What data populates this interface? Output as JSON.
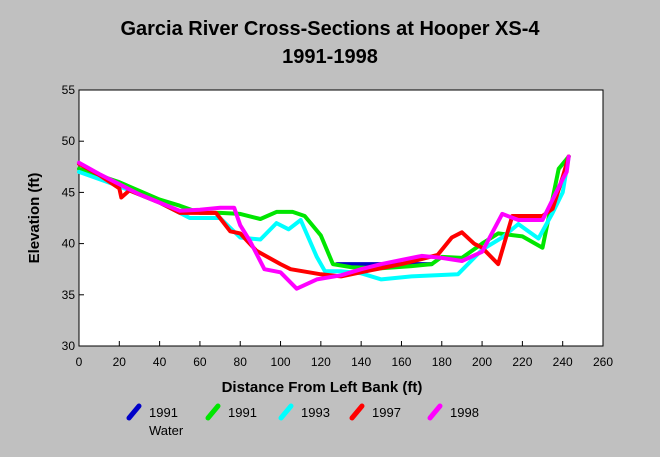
{
  "chart_data": {
    "type": "line",
    "title": "Garcia River Cross-Sections at Hooper XS-4",
    "subtitle": "1991-1998",
    "xlabel": "Distance From Left Bank (ft)",
    "ylabel": "Elevation (ft)",
    "xlim": [
      0,
      260
    ],
    "ylim": [
      30,
      55
    ],
    "xticks": [
      "0",
      "20",
      "40",
      "60",
      "80",
      "100",
      "120",
      "140",
      "160",
      "180",
      "200",
      "220",
      "240",
      "260"
    ],
    "yticks": [
      "30",
      "35",
      "40",
      "45",
      "50",
      "55"
    ],
    "grid": false,
    "legend_position": "bottom",
    "series": [
      {
        "name": "1991 Water",
        "color": "#0000c8",
        "points": [
          [
            128,
            38.0
          ],
          [
            175,
            38.0
          ]
        ]
      },
      {
        "name": "1991",
        "color": "#00e600",
        "points": [
          [
            0,
            47.3
          ],
          [
            20,
            46.0
          ],
          [
            40,
            44.3
          ],
          [
            50,
            43.7
          ],
          [
            60,
            43.0
          ],
          [
            70,
            43.0
          ],
          [
            80,
            42.9
          ],
          [
            90,
            42.4
          ],
          [
            98,
            43.1
          ],
          [
            106,
            43.1
          ],
          [
            112,
            42.7
          ],
          [
            120,
            40.8
          ],
          [
            126,
            38.0
          ],
          [
            135,
            37.7
          ],
          [
            150,
            37.6
          ],
          [
            165,
            37.8
          ],
          [
            175,
            38.0
          ],
          [
            180,
            38.7
          ],
          [
            190,
            38.6
          ],
          [
            200,
            40.0
          ],
          [
            208,
            41.0
          ],
          [
            220,
            40.7
          ],
          [
            230,
            39.6
          ],
          [
            238,
            47.3
          ],
          [
            243,
            48.5
          ]
        ]
      },
      {
        "name": "1993",
        "color": "#00ffff",
        "points": [
          [
            0,
            47.0
          ],
          [
            20,
            45.6
          ],
          [
            40,
            44.0
          ],
          [
            55,
            42.5
          ],
          [
            70,
            42.5
          ],
          [
            80,
            40.6
          ],
          [
            90,
            40.4
          ],
          [
            98,
            42.0
          ],
          [
            104,
            41.4
          ],
          [
            110,
            42.3
          ],
          [
            118,
            38.7
          ],
          [
            122,
            37.3
          ],
          [
            130,
            37.3
          ],
          [
            140,
            37.1
          ],
          [
            150,
            36.5
          ],
          [
            165,
            36.8
          ],
          [
            188,
            37.0
          ],
          [
            200,
            39.4
          ],
          [
            210,
            40.6
          ],
          [
            218,
            41.9
          ],
          [
            228,
            40.5
          ],
          [
            235,
            43.0
          ],
          [
            240,
            45.0
          ],
          [
            243,
            48.5
          ]
        ]
      },
      {
        "name": "1997",
        "color": "#ff0000",
        "points": [
          [
            0,
            47.8
          ],
          [
            10,
            46.7
          ],
          [
            20,
            45.4
          ],
          [
            21,
            44.5
          ],
          [
            25,
            45.2
          ],
          [
            40,
            44.0
          ],
          [
            50,
            43.0
          ],
          [
            60,
            43.0
          ],
          [
            68,
            43.0
          ],
          [
            75,
            41.2
          ],
          [
            80,
            41.0
          ],
          [
            88,
            39.3
          ],
          [
            100,
            38.0
          ],
          [
            105,
            37.5
          ],
          [
            120,
            37.0
          ],
          [
            130,
            36.8
          ],
          [
            145,
            37.4
          ],
          [
            160,
            38.0
          ],
          [
            170,
            38.5
          ],
          [
            178,
            38.9
          ],
          [
            185,
            40.6
          ],
          [
            190,
            41.1
          ],
          [
            196,
            40.0
          ],
          [
            200,
            39.6
          ],
          [
            208,
            38.0
          ],
          [
            215,
            42.7
          ],
          [
            225,
            42.7
          ],
          [
            230,
            42.7
          ],
          [
            235,
            43.4
          ],
          [
            240,
            46.5
          ],
          [
            243,
            48.5
          ]
        ]
      },
      {
        "name": "1998",
        "color": "#ff00ff",
        "points": [
          [
            0,
            47.9
          ],
          [
            10,
            46.8
          ],
          [
            20,
            45.8
          ],
          [
            30,
            44.8
          ],
          [
            40,
            44.0
          ],
          [
            50,
            43.2
          ],
          [
            60,
            43.3
          ],
          [
            70,
            43.5
          ],
          [
            77,
            43.5
          ],
          [
            80,
            41.8
          ],
          [
            85,
            40.2
          ],
          [
            92,
            37.5
          ],
          [
            100,
            37.2
          ],
          [
            108,
            35.6
          ],
          [
            118,
            36.5
          ],
          [
            130,
            36.9
          ],
          [
            140,
            37.5
          ],
          [
            150,
            38.0
          ],
          [
            160,
            38.4
          ],
          [
            170,
            38.8
          ],
          [
            180,
            38.6
          ],
          [
            190,
            38.3
          ],
          [
            200,
            39.2
          ],
          [
            210,
            42.9
          ],
          [
            218,
            42.3
          ],
          [
            230,
            42.3
          ],
          [
            238,
            45.5
          ],
          [
            240,
            46.3
          ],
          [
            242,
            47.0
          ],
          [
            243,
            48.5
          ]
        ]
      }
    ]
  },
  "legend": [
    {
      "label": "1991",
      "sub": "Water",
      "color": "#0000c8"
    },
    {
      "label": "1991",
      "sub": "",
      "color": "#00e600"
    },
    {
      "label": "1993",
      "sub": "",
      "color": "#00ffff"
    },
    {
      "label": "1997",
      "sub": "",
      "color": "#ff0000"
    },
    {
      "label": "1998",
      "sub": "",
      "color": "#ff00ff"
    }
  ]
}
